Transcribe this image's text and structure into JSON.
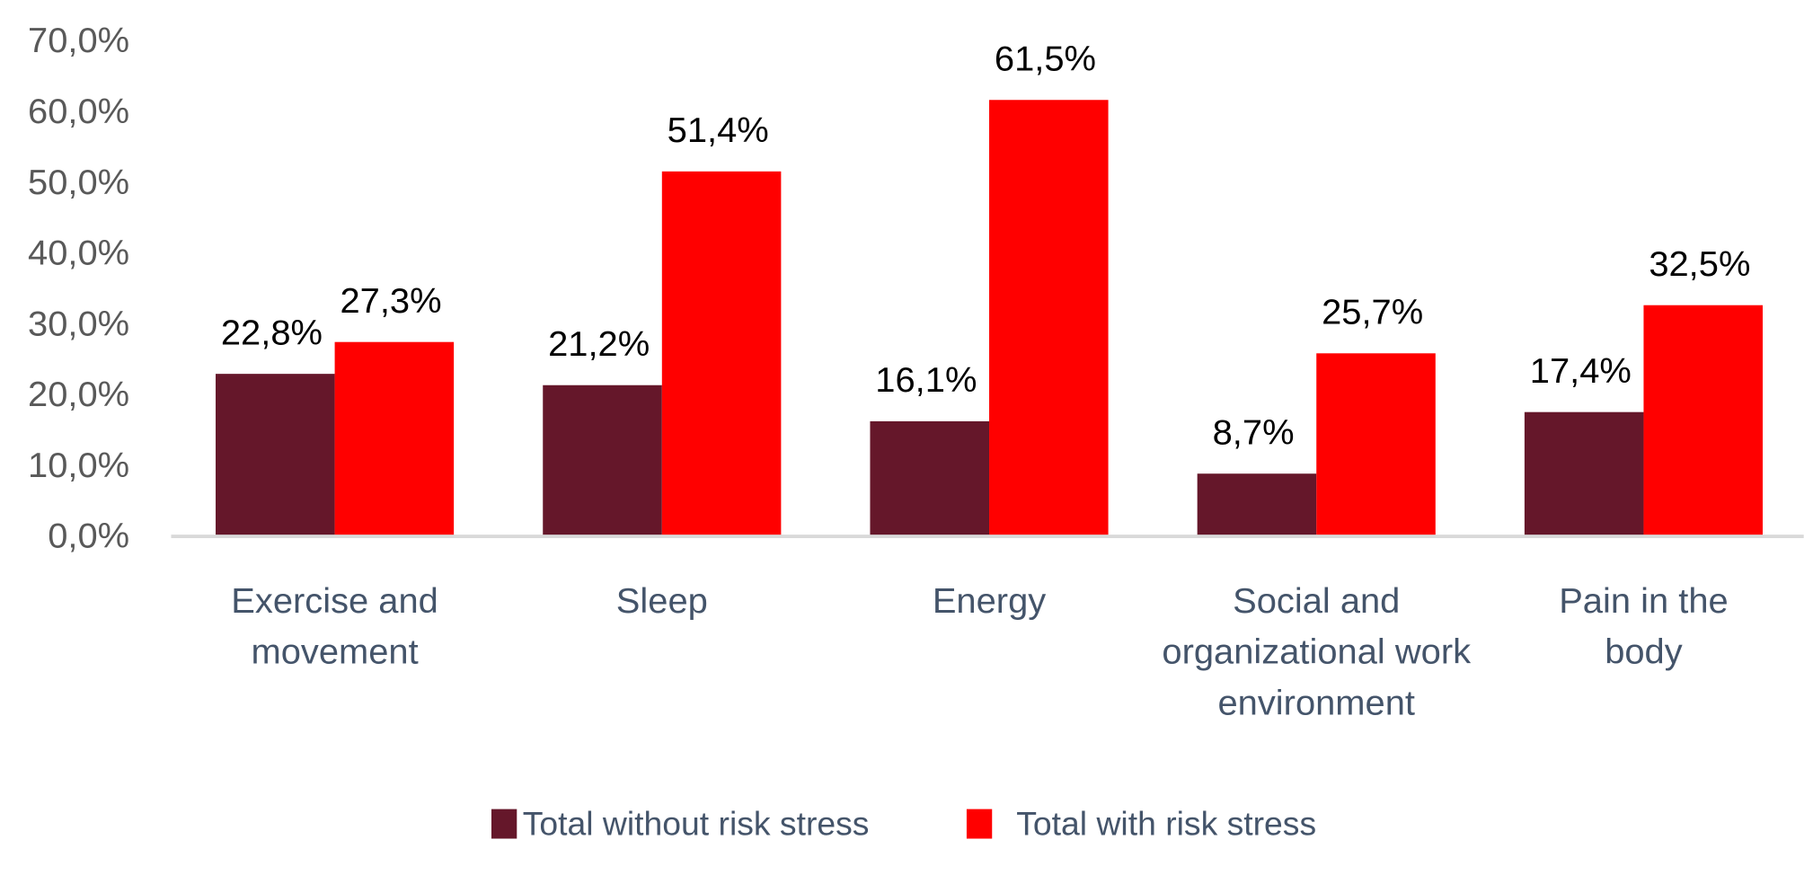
{
  "chart_data": {
    "type": "bar",
    "title": "",
    "xlabel": "",
    "ylabel": "",
    "categories": [
      [
        "Exercise and",
        "movement"
      ],
      [
        "Sleep"
      ],
      [
        "Energy"
      ],
      [
        "Social and",
        "organizational work",
        "environment"
      ],
      [
        "Pain in the",
        "body"
      ]
    ],
    "series": [
      {
        "name": "Total without risk stress",
        "color": "#65172A",
        "values": [
          22.8,
          21.2,
          16.1,
          8.7,
          17.4
        ],
        "labels": [
          "22,8%",
          "21,2%",
          "16,1%",
          "8,7%",
          "17,4%"
        ]
      },
      {
        "name": "Total with risk stress",
        "color": "#FF0000",
        "values": [
          27.3,
          51.4,
          61.5,
          25.7,
          32.5
        ],
        "labels": [
          "27,3%",
          "51,4%",
          "61,5%",
          "25,7%",
          "32,5%"
        ]
      }
    ],
    "ylim": [
      0,
      70
    ],
    "yticks": [
      "0,0%",
      "10,0%",
      "20,0%",
      "30,0%",
      "40,0%",
      "50,0%",
      "60,0%",
      "70,0%"
    ],
    "grid": false,
    "legend": "bottom",
    "axis_color": "#D9D9D9"
  }
}
